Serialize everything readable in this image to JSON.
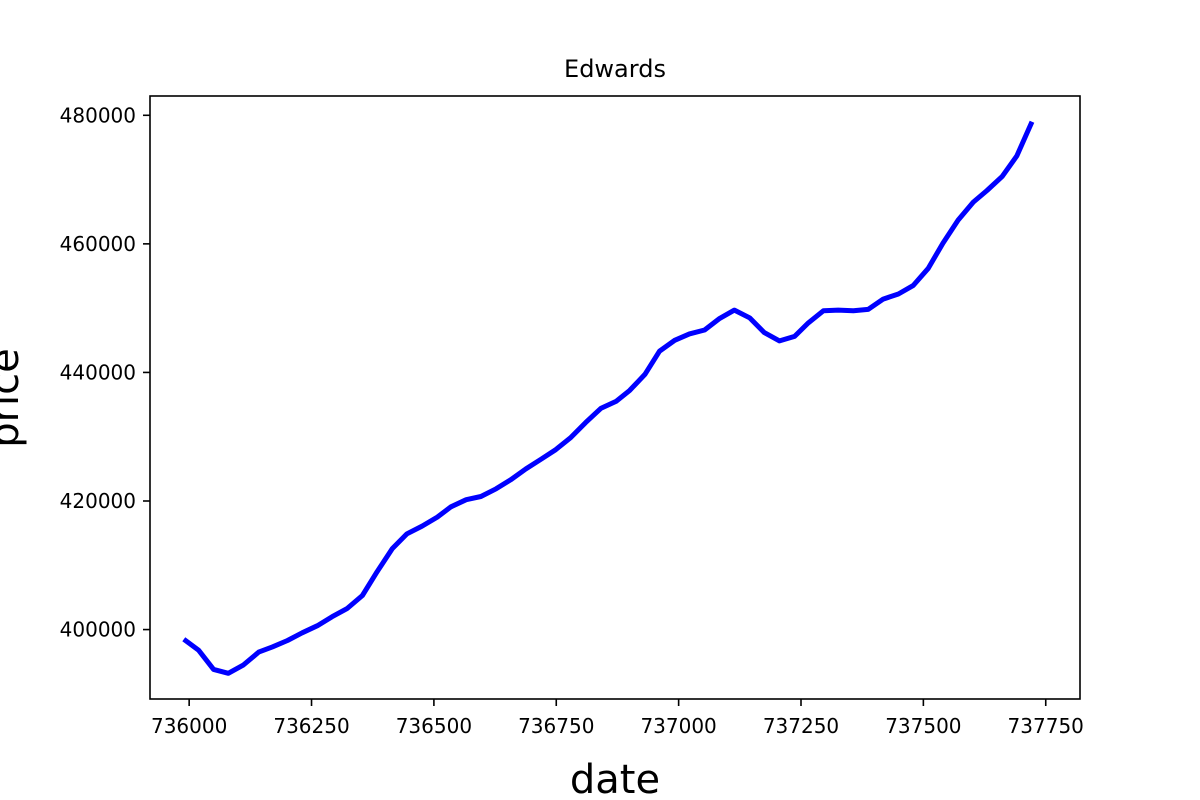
{
  "chart_data": {
    "type": "line",
    "title": "Edwards",
    "xlabel": "date",
    "ylabel": "price",
    "xlim": [
      735920,
      737820
    ],
    "ylim": [
      389200,
      483000
    ],
    "xticks": [
      736000,
      736250,
      736500,
      736750,
      737000,
      737250,
      737500,
      737750
    ],
    "yticks": [
      400000,
      420000,
      440000,
      460000,
      480000
    ],
    "grid": false,
    "series": [
      {
        "color": "#0000ff",
        "x": [
          735989,
          736019,
          736050,
          736080,
          736111,
          736142,
          736170,
          736201,
          736231,
          736262,
          736292,
          736323,
          736354,
          736384,
          736415,
          736445,
          736476,
          736507,
          736535,
          736566,
          736596,
          736627,
          736657,
          736688,
          736719,
          736749,
          736780,
          736810,
          736841,
          736872,
          736900,
          736931,
          736961,
          736992,
          737022,
          737053,
          737084,
          737114,
          737145,
          737175,
          737206,
          737237,
          737265,
          737296,
          737326,
          737357,
          737387,
          737418,
          737449,
          737479,
          737510,
          737540,
          737571,
          737602,
          737630,
          737661,
          737691,
          737722
        ],
        "y": [
          398500,
          396800,
          393800,
          393200,
          394500,
          396500,
          397300,
          398300,
          399500,
          400600,
          402000,
          403300,
          405300,
          409000,
          412600,
          414900,
          416100,
          417500,
          419100,
          420200,
          420700,
          421900,
          423300,
          425000,
          426500,
          428000,
          429900,
          432200,
          434400,
          435500,
          437200,
          439700,
          443300,
          445000,
          446000,
          446600,
          448400,
          449700,
          448500,
          446200,
          444900,
          445600,
          447700,
          449600,
          449700,
          449600,
          449800,
          451400,
          452200,
          453500,
          456200,
          460100,
          463700,
          466500,
          468300,
          470500,
          473700,
          479000
        ]
      }
    ]
  }
}
